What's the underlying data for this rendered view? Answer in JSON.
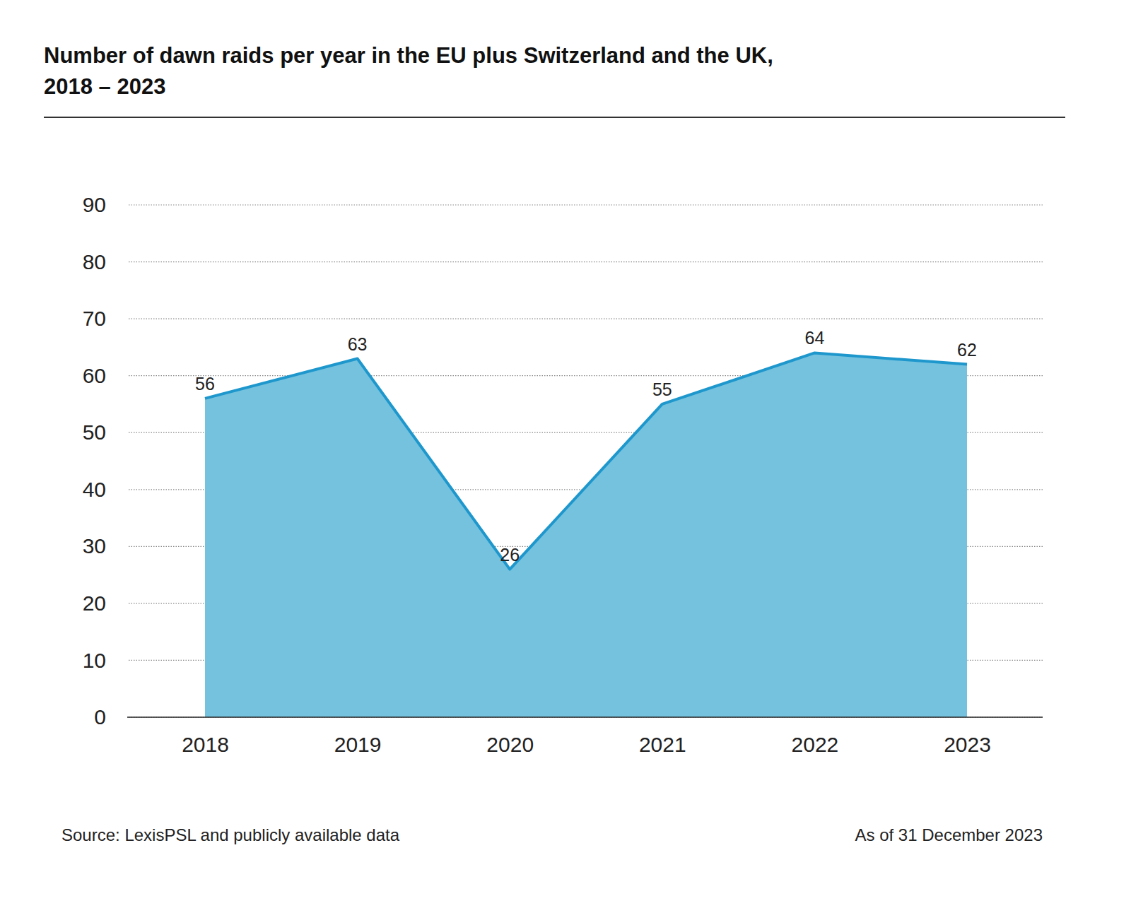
{
  "chart_data": {
    "type": "area",
    "title": [
      "Number of dawn raids per year in the EU plus Switzerland and the UK,",
      "2018 – 2023"
    ],
    "categories": [
      "2018",
      "2019",
      "2020",
      "2021",
      "2022",
      "2023"
    ],
    "values": [
      56,
      63,
      26,
      55,
      64,
      62
    ],
    "color": "#1e97cd",
    "ylim": [
      0,
      90
    ],
    "yticks": [
      0,
      10,
      20,
      30,
      40,
      50,
      60,
      70,
      80,
      90
    ],
    "grid": true,
    "data_labels": true,
    "source": "Source: LexisPSL and publicly available data",
    "note": "As of 31 December 2023"
  }
}
